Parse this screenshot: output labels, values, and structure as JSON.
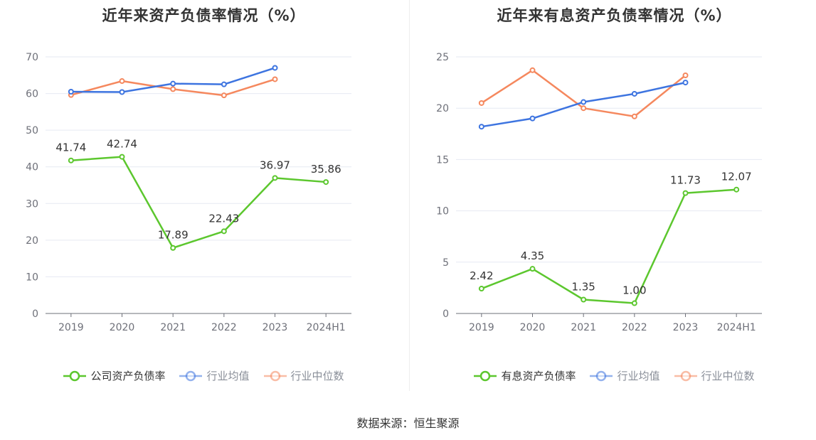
{
  "source_text": "数据来源：恒生聚源",
  "chart_data": [
    {
      "type": "line",
      "title": "近年来资产负债率情况（%）",
      "categories": [
        "2019",
        "2020",
        "2021",
        "2022",
        "2023",
        "2024H1"
      ],
      "ylim": [
        0,
        70
      ],
      "yticks": [
        0,
        10,
        20,
        30,
        40,
        50,
        60,
        70
      ],
      "grid": true,
      "legend_position": "bottom",
      "series": [
        {
          "name": "公司资产负债率",
          "color": "#5cc72e",
          "values": [
            41.74,
            42.74,
            17.89,
            22.43,
            36.97,
            35.86
          ],
          "labels": [
            "41.74",
            "42.74",
            "17.89",
            "22.43",
            "36.97",
            "35.86"
          ]
        },
        {
          "name": "行业均值",
          "color": "#3d74e0",
          "values": [
            60.5,
            60.4,
            62.7,
            62.5,
            67.0,
            null
          ]
        },
        {
          "name": "行业中位数",
          "color": "#f5885e",
          "values": [
            59.6,
            63.4,
            61.2,
            59.5,
            63.9,
            null
          ]
        }
      ]
    },
    {
      "type": "line",
      "title": "近年来有息资产负债率情况（%）",
      "categories": [
        "2019",
        "2020",
        "2021",
        "2022",
        "2023",
        "2024H1"
      ],
      "ylim": [
        0,
        25
      ],
      "yticks": [
        0,
        5,
        10,
        15,
        20,
        25
      ],
      "grid": true,
      "legend_position": "bottom",
      "series": [
        {
          "name": "有息资产负债率",
          "color": "#5cc72e",
          "values": [
            2.42,
            4.35,
            1.35,
            1.0,
            11.73,
            12.07
          ],
          "labels": [
            "2.42",
            "4.35",
            "1.35",
            "1.00",
            "11.73",
            "12.07"
          ]
        },
        {
          "name": "行业均值",
          "color": "#3d74e0",
          "values": [
            18.2,
            19.0,
            20.6,
            21.4,
            22.5,
            null
          ]
        },
        {
          "name": "行业中位数",
          "color": "#f5885e",
          "values": [
            20.5,
            23.7,
            20.0,
            19.2,
            23.2,
            null
          ]
        }
      ]
    }
  ]
}
